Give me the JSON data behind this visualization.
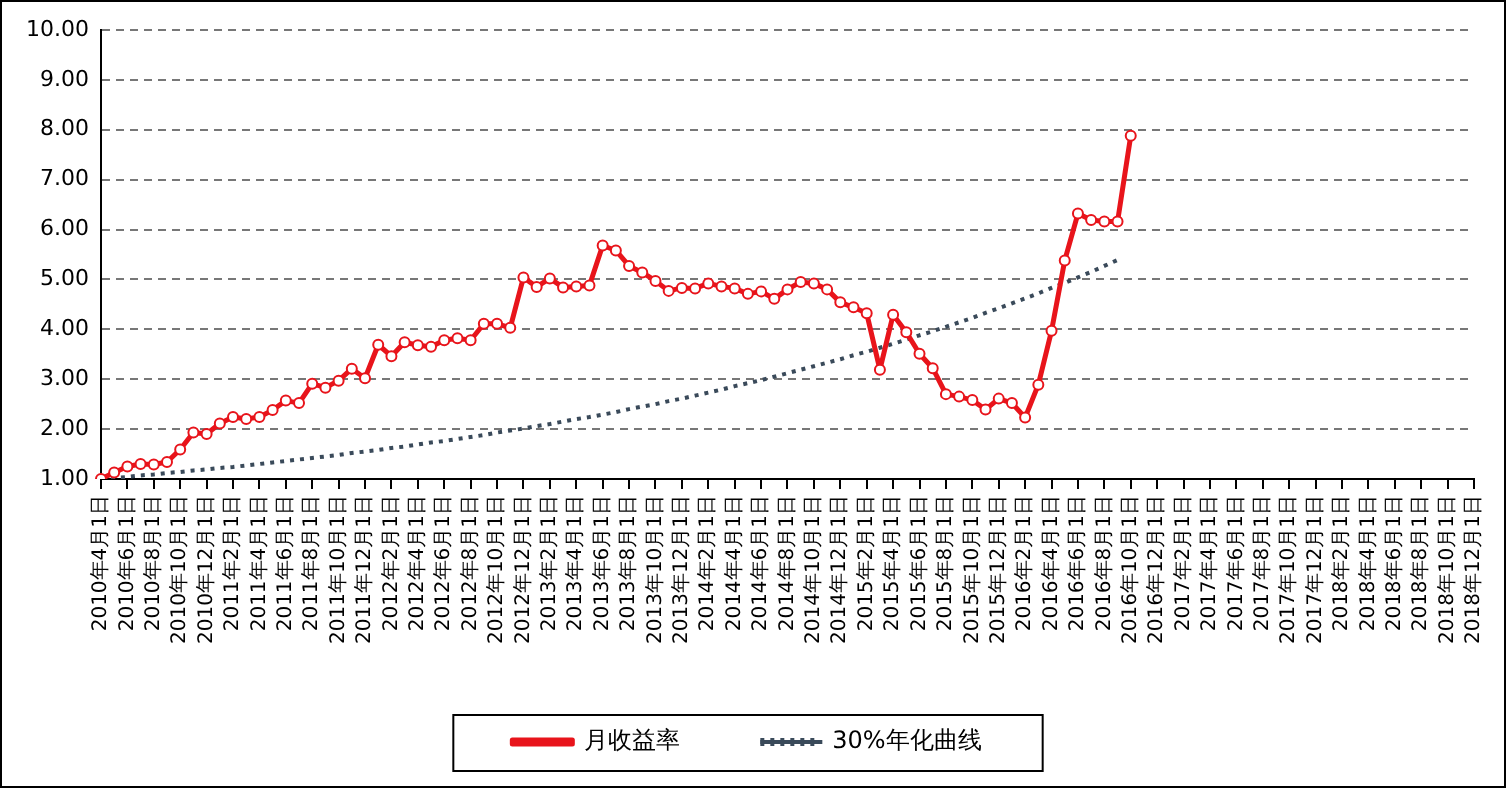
{
  "chart_data": {
    "type": "line",
    "categories": [
      "2010年4月1日",
      null,
      "2010年6月1日",
      null,
      "2010年8月1日",
      null,
      "2010年10月1日",
      null,
      "2010年12月1日",
      null,
      "2011年2月1日",
      null,
      "2011年4月1日",
      null,
      "2011年6月1日",
      null,
      "2011年8月1日",
      null,
      "2011年10月1日",
      null,
      "2011年12月1日",
      null,
      "2012年2月1日",
      null,
      "2012年4月1日",
      null,
      "2012年6月1日",
      null,
      "2012年8月1日",
      null,
      "2012年10月1日",
      null,
      "2012年12月1日",
      null,
      "2013年2月1日",
      null,
      "2013年4月1日",
      null,
      "2013年6月1日",
      null,
      "2013年8月1日",
      null,
      "2013年10月1日",
      null,
      "2013年12月1日",
      null,
      "2014年2月1日",
      null,
      "2014年4月1日",
      null,
      "2014年6月1日",
      null,
      "2014年8月1日",
      null,
      "2014年10月1日",
      null,
      "2014年12月1日",
      null,
      "2015年2月1日",
      null,
      "2015年4月1日",
      null,
      "2015年6月1日",
      null,
      "2015年8月1日",
      null,
      "2015年10月1日",
      null,
      "2015年12月1日",
      null,
      "2016年2月1日",
      null,
      "2016年4月1日",
      null,
      "2016年6月1日",
      null,
      "2016年8月1日",
      null,
      "2016年10月1日",
      null,
      "2016年12月1日",
      null,
      "2017年2月1日",
      null,
      "2017年4月1日",
      null,
      "2017年6月1日",
      null,
      "2017年8月1日",
      null,
      "2017年10月1日",
      null,
      "2017年12月1日",
      null,
      "2018年2月1日",
      null,
      "2018年4月1日",
      null,
      "2018年6月1日",
      null,
      "2018年8月1日",
      null,
      "2018年10月1日",
      null,
      "2018年12月1日"
    ],
    "series": [
      {
        "name": "月收益率",
        "color": "#e8141b",
        "marker": "circle",
        "line_style": "solid",
        "values": [
          1.0,
          1.13,
          1.25,
          1.3,
          1.29,
          1.34,
          1.59,
          1.93,
          1.9,
          2.11,
          2.24,
          2.2,
          2.24,
          2.38,
          2.57,
          2.52,
          2.91,
          2.83,
          2.97,
          3.21,
          3.02,
          3.69,
          3.46,
          3.74,
          3.68,
          3.65,
          3.78,
          3.82,
          3.78,
          4.11,
          4.11,
          4.03,
          5.04,
          4.85,
          5.02,
          4.84,
          4.86,
          4.88,
          5.68,
          5.58,
          5.27,
          5.14,
          4.97,
          4.77,
          4.83,
          4.82,
          4.92,
          4.86,
          4.82,
          4.71,
          4.76,
          4.61,
          4.8,
          4.95,
          4.92,
          4.8,
          4.54,
          4.44,
          4.32,
          3.19,
          4.29,
          3.94,
          3.51,
          3.22,
          2.7,
          2.65,
          2.58,
          2.39,
          2.61,
          2.52,
          2.23,
          2.89,
          3.97,
          5.38,
          6.32,
          6.19,
          6.16,
          6.16,
          7.88,
          null,
          null,
          null,
          null,
          null,
          null,
          null,
          null,
          null,
          null,
          null,
          null,
          null,
          null,
          null,
          null,
          null,
          null,
          null,
          null,
          null,
          null,
          null,
          null,
          null,
          null
        ]
      },
      {
        "name": "30%年化曲线",
        "color": "#3a4a5a",
        "marker": "none",
        "line_style": "dotted",
        "values": [
          1.0,
          1.02,
          1.04,
          1.07,
          1.09,
          1.12,
          1.14,
          1.17,
          1.19,
          1.22,
          1.24,
          1.27,
          1.3,
          1.33,
          1.36,
          1.39,
          1.42,
          1.45,
          1.48,
          1.52,
          1.55,
          1.58,
          1.62,
          1.65,
          1.69,
          1.73,
          1.76,
          1.8,
          1.84,
          1.88,
          1.93,
          1.97,
          2.01,
          2.06,
          2.1,
          2.15,
          2.2,
          2.24,
          2.29,
          2.34,
          2.4,
          2.45,
          2.5,
          2.56,
          2.61,
          2.67,
          2.73,
          2.79,
          2.86,
          2.92,
          2.98,
          3.05,
          3.12,
          3.19,
          3.26,
          3.33,
          3.4,
          3.48,
          3.55,
          3.63,
          3.71,
          3.79,
          3.88,
          3.96,
          4.05,
          4.14,
          4.23,
          4.33,
          4.42,
          4.52,
          4.62,
          4.72,
          4.83,
          4.93,
          5.04,
          5.15,
          5.27,
          5.39,
          null,
          null,
          null,
          null,
          null,
          null,
          null,
          null,
          null,
          null,
          null,
          null,
          null,
          null,
          null,
          null,
          null,
          null,
          null,
          null,
          null,
          null,
          null,
          null,
          null,
          null,
          null
        ]
      }
    ],
    "ylim": [
      1,
      10
    ],
    "yticks": [
      {
        "value": 1,
        "label": "1.00"
      },
      {
        "value": 2,
        "label": "2.00"
      },
      {
        "value": 3,
        "label": "3.00"
      },
      {
        "value": 4,
        "label": "4.00"
      },
      {
        "value": 5,
        "label": "5.00"
      },
      {
        "value": 6,
        "label": "6.00"
      },
      {
        "value": 7,
        "label": "7.00"
      },
      {
        "value": 8,
        "label": "8.00"
      },
      {
        "value": 9,
        "label": "9.00"
      },
      {
        "value": 10,
        "label": "10.00"
      }
    ],
    "grid": "y",
    "legend": "bottom"
  }
}
